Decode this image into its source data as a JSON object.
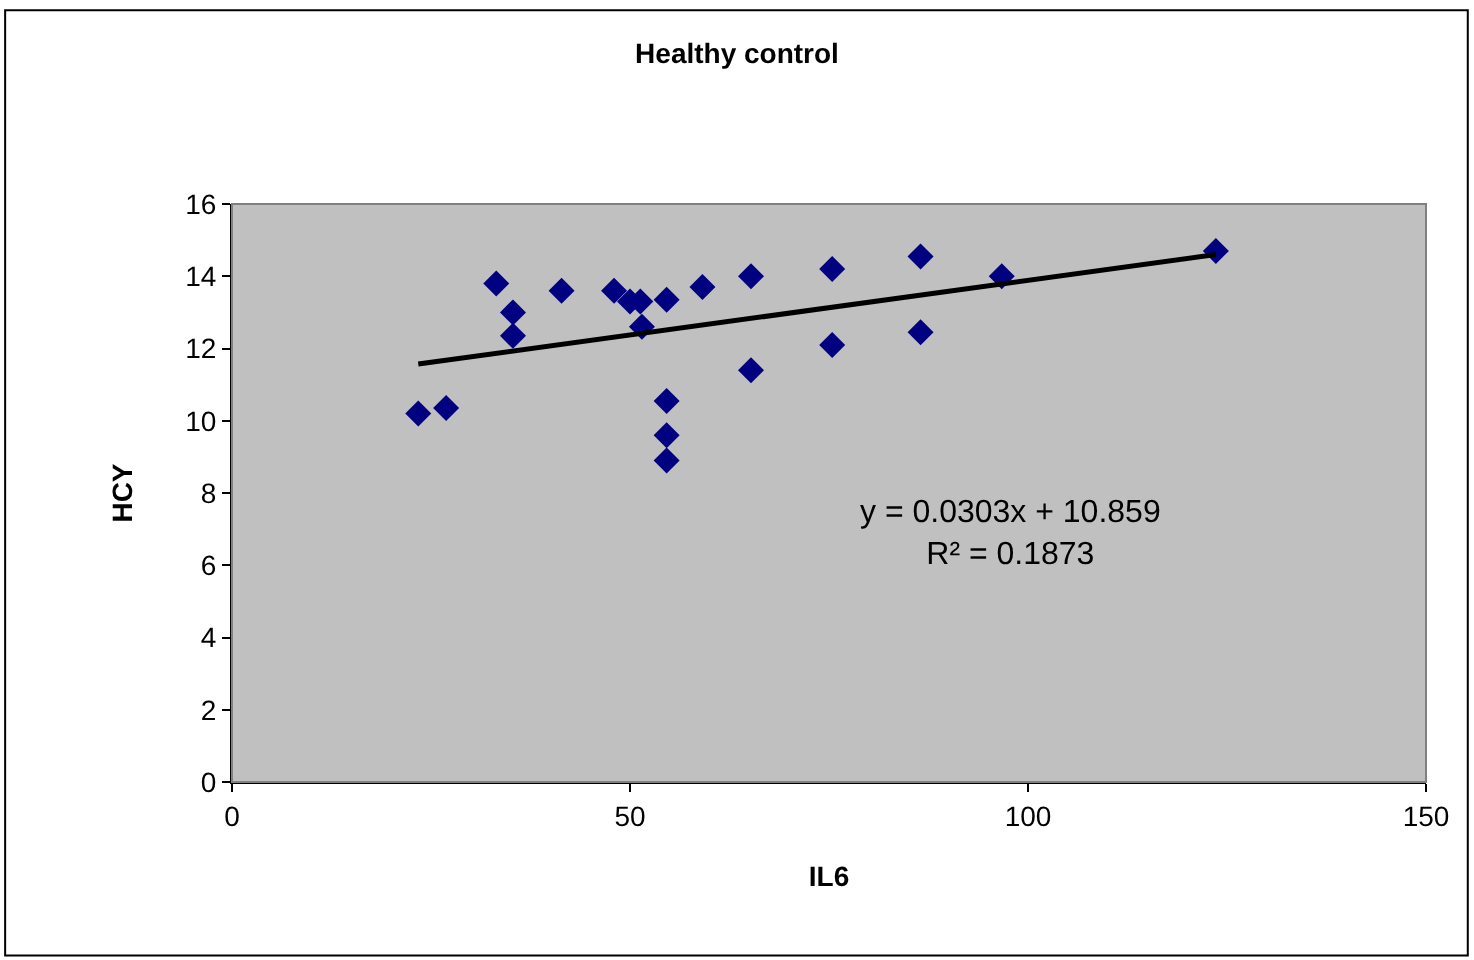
{
  "chart_data": {
    "type": "scatter",
    "title": "Healthy control",
    "xlabel": "IL6",
    "ylabel": "HCY",
    "xlim": [
      0,
      150
    ],
    "xticks": [
      0,
      50,
      100,
      150
    ],
    "ylim": [
      0,
      16
    ],
    "yticks": [
      0,
      2,
      4,
      6,
      8,
      10,
      12,
      14,
      16
    ],
    "grid": false,
    "legend": false,
    "annotations": [
      "y = 0.0303x + 10.859\nR² = 0.1873"
    ],
    "series": [
      {
        "marker": "diamond",
        "color": "#000080",
        "x": [
          23.4,
          26.9,
          33.2,
          35.3,
          35.3,
          41.4,
          48,
          50,
          51.3,
          51.5,
          54.6,
          54.6,
          54.6,
          54.6,
          59.1,
          65.2,
          65.2,
          75.4,
          75.4,
          86.5,
          86.5,
          96.7,
          123.6
        ],
        "values": [
          10.2,
          10.35,
          13.8,
          13.0,
          12.35,
          13.6,
          13.6,
          13.3,
          13.3,
          12.6,
          13.35,
          10.55,
          9.6,
          8.9,
          13.7,
          14.0,
          11.4,
          14.2,
          12.1,
          14.55,
          12.45,
          14.0,
          14.7
        ]
      },
      {
        "type": "line",
        "color": "#000000",
        "line_style": "solid",
        "x": [
          23.4,
          123.6
        ],
        "values": [
          11.57,
          14.6
        ]
      }
    ]
  }
}
